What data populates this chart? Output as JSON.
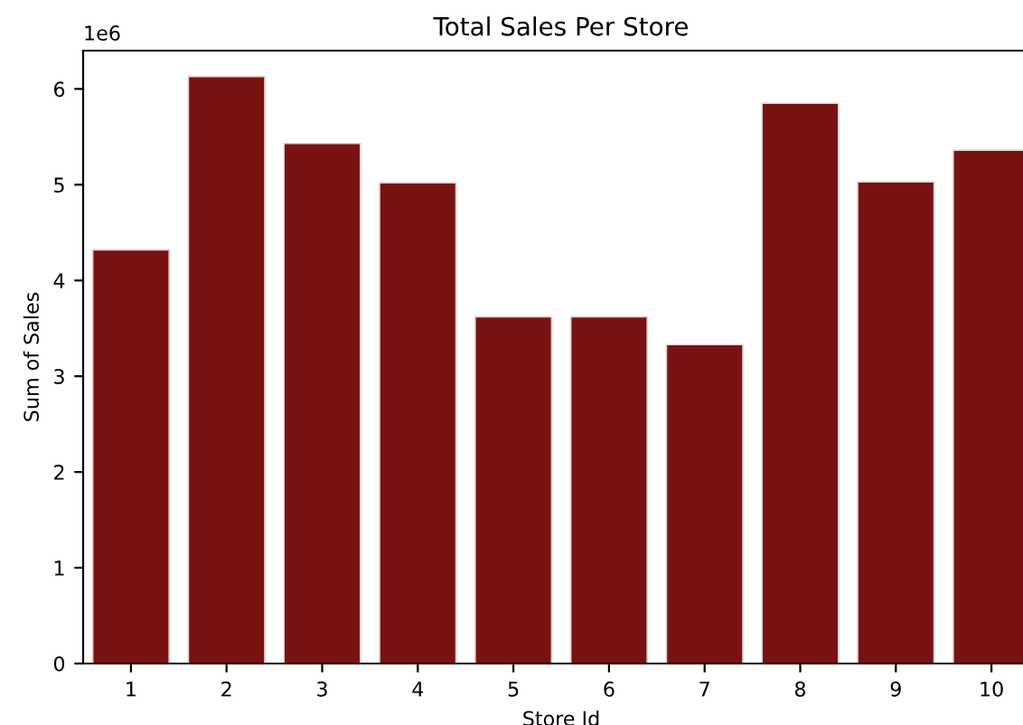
{
  "chart_data": {
    "type": "bar",
    "title": "Total Sales Per Store",
    "xlabel": "Store Id",
    "ylabel": "Sum of Sales",
    "categories": [
      "1",
      "2",
      "3",
      "4",
      "5",
      "6",
      "7",
      "8",
      "9",
      "10"
    ],
    "values": [
      4.32,
      6.13,
      5.43,
      5.02,
      3.62,
      3.62,
      3.33,
      5.85,
      5.03,
      5.36
    ],
    "color": "#7a1212",
    "ylim": [
      0,
      6.4
    ],
    "yticks": [
      0,
      1,
      2,
      3,
      4,
      5,
      6
    ],
    "grid": false,
    "annotations": [
      "1e6"
    ]
  }
}
